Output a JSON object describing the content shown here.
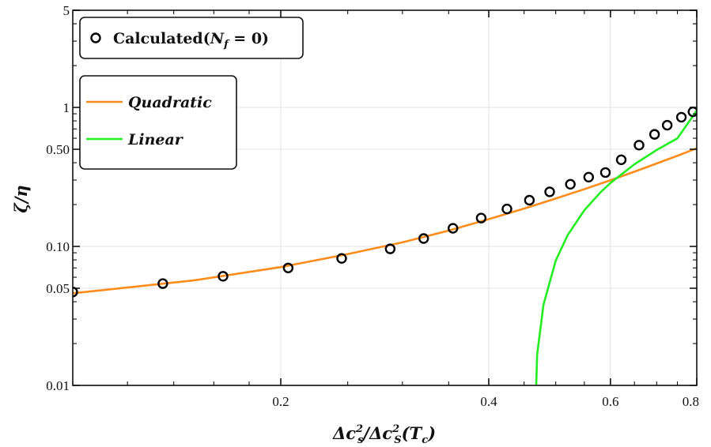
{
  "chart_data": {
    "type": "scatter",
    "xlabel": "Δc_s²/Δc_S²(T_c)",
    "ylabel": "ζ/η",
    "xscale": "log",
    "yscale": "log",
    "xlim": [
      0.1,
      0.8
    ],
    "ylim": [
      0.01,
      5
    ],
    "xticks": [
      {
        "value": 0.2,
        "label": "0.2"
      },
      {
        "value": 0.4,
        "label": "0.4"
      },
      {
        "value": 0.6,
        "label": "0.6"
      },
      {
        "value": 0.8,
        "label": "0.8"
      }
    ],
    "yticks": [
      {
        "value": 0.01,
        "label": "0.01"
      },
      {
        "value": 0.05,
        "label": "0.05"
      },
      {
        "value": 0.1,
        "label": "0.10"
      },
      {
        "value": 0.5,
        "label": "0.50"
      },
      {
        "value": 1,
        "label": "1"
      },
      {
        "value": 5,
        "label": "5"
      }
    ],
    "grid": true,
    "series": [
      {
        "name": "Calculated(N_f = 0)",
        "kind": "scatter",
        "marker": "open-circle",
        "color": "#000000",
        "x": [
          0.1,
          0.135,
          0.165,
          0.205,
          0.245,
          0.288,
          0.322,
          0.355,
          0.39,
          0.425,
          0.458,
          0.49,
          0.525,
          0.558,
          0.59,
          0.622,
          0.66,
          0.695,
          0.725,
          0.76,
          0.79
        ],
        "y": [
          0.047,
          0.054,
          0.061,
          0.07,
          0.082,
          0.096,
          0.114,
          0.135,
          0.16,
          0.186,
          0.215,
          0.247,
          0.28,
          0.315,
          0.34,
          0.42,
          0.535,
          0.64,
          0.745,
          0.85,
          0.93
        ]
      },
      {
        "name": "Quadratic",
        "kind": "line",
        "color": "#ff8c1a",
        "x": [
          0.1,
          0.15,
          0.2,
          0.25,
          0.3,
          0.35,
          0.4,
          0.45,
          0.5,
          0.55,
          0.6,
          0.65,
          0.7,
          0.75,
          0.8
        ],
        "y": [
          0.046,
          0.057,
          0.071,
          0.088,
          0.107,
          0.13,
          0.157,
          0.187,
          0.221,
          0.258,
          0.299,
          0.345,
          0.395,
          0.449,
          0.508
        ]
      },
      {
        "name": "Linear",
        "kind": "line",
        "color": "#22ee22",
        "x": [
          0.4685,
          0.47,
          0.48,
          0.5,
          0.52,
          0.55,
          0.58,
          0.6,
          0.65,
          0.7,
          0.75,
          0.8
        ],
        "y": [
          0.01,
          0.0167,
          0.038,
          0.079,
          0.12,
          0.182,
          0.244,
          0.286,
          0.39,
          0.494,
          0.599,
          0.95
        ]
      }
    ],
    "legend": [
      {
        "placement": "top-left",
        "entries": [
          {
            "label_main": "Calculated(",
            "label_var": "N",
            "label_sub": "f",
            "label_rest": " = 0)"
          }
        ]
      },
      {
        "placement": "upper-left",
        "entries": [
          {
            "label": "Quadratic",
            "color": "#ff8c1a"
          },
          {
            "label": "Linear",
            "color": "#22ee22"
          }
        ]
      }
    ]
  }
}
